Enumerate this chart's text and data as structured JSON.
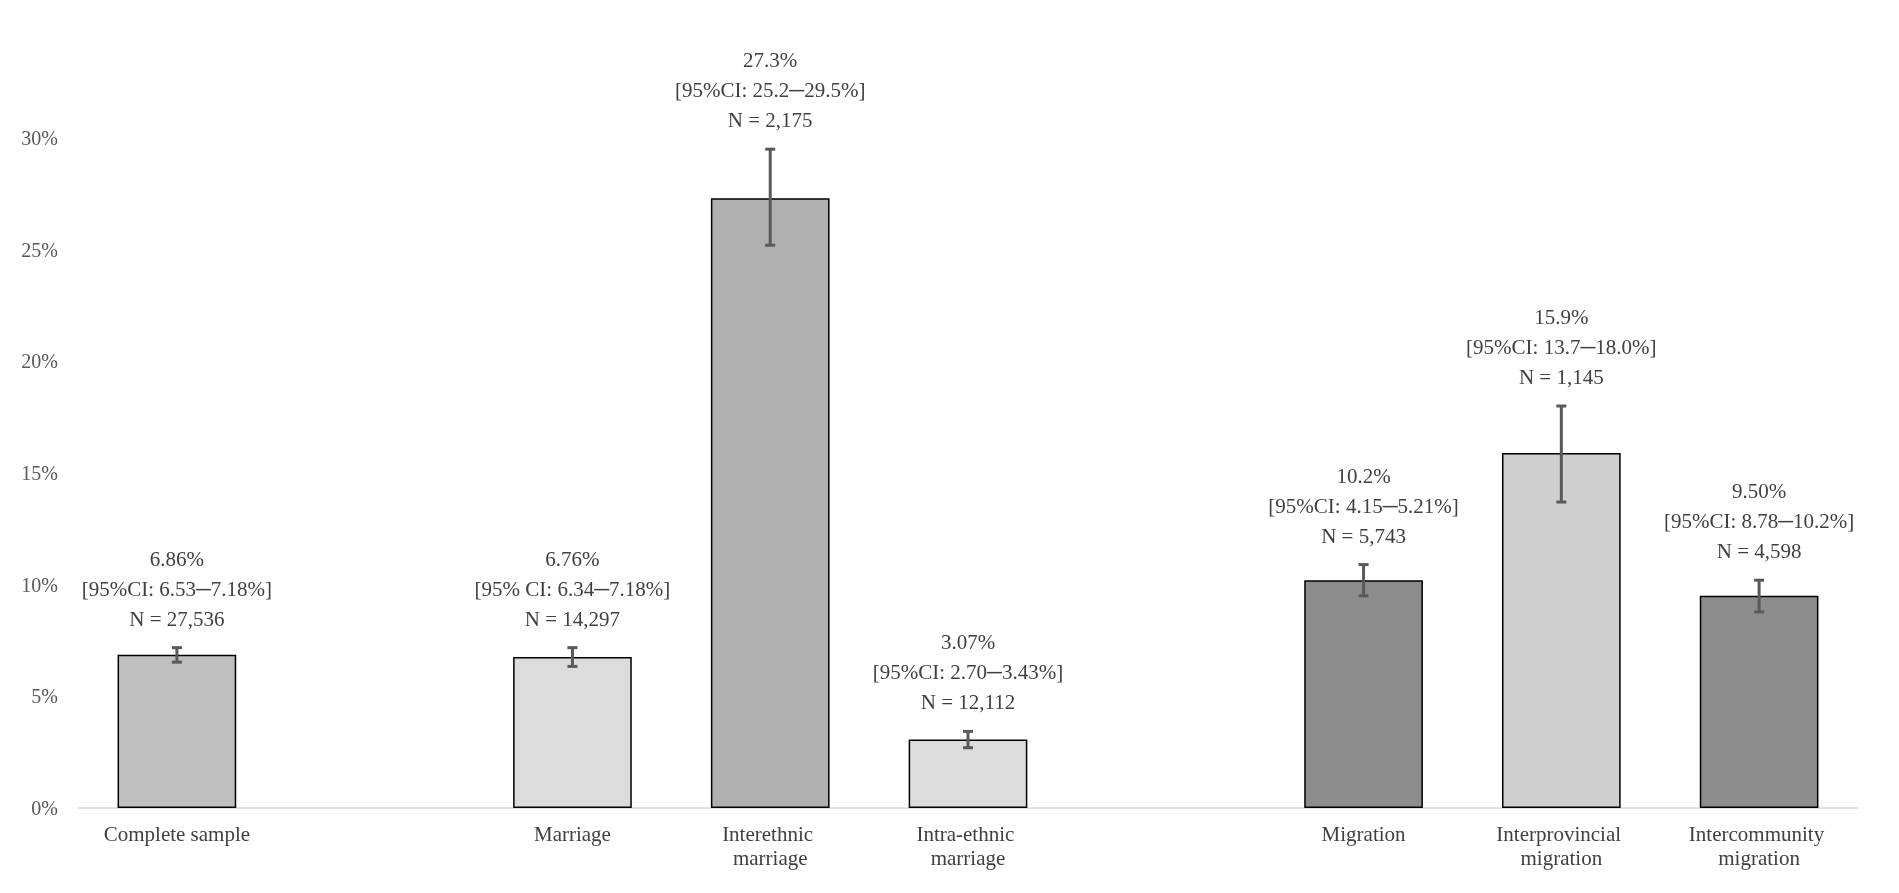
{
  "chart_data": {
    "type": "bar",
    "categories": [
      "Complete sample",
      null,
      "Marriage",
      "Interethnic marriage",
      "Intra-ethnic marriage",
      null,
      "Migration",
      "Interprovincial migration",
      "Intercommunity migration"
    ],
    "values": [
      6.86,
      null,
      6.76,
      27.3,
      3.07,
      null,
      10.2,
      15.9,
      9.5
    ],
    "colors": [
      "#bfbfbf",
      null,
      "#dcdcdc",
      "#b0b0b0",
      "#dcdcdc",
      null,
      "#8c8c8c",
      "#cfcfcf",
      "#8c8c8c"
    ],
    "errors": [
      [
        6.53,
        7.18
      ],
      null,
      [
        6.34,
        7.18
      ],
      [
        25.2,
        29.5
      ],
      [
        2.7,
        3.43
      ],
      null,
      [
        9.5,
        10.9
      ],
      [
        13.7,
        18.0
      ],
      [
        8.78,
        10.2
      ]
    ],
    "value_labels": [
      "6.86%\n[95%CI: 6.53─7.18%]\nN = 27,536",
      null,
      "6.76%\n[95% CI: 6.34─7.18%]\nN = 14,297",
      "27.3%\n[95%CI: 25.2─29.5%]\nN = 2,175",
      "3.07%\n[95%CI: 2.70─3.43%]\nN = 12,112",
      null,
      "10.2%\n[95%CI: 4.15─5.21%]\nN = 5,743",
      "15.9%\n[95%CI: 13.7─18.0%]\nN = 1,145",
      "9.50%\n[95%CI: 8.78─10.2%]\nN = 4,598"
    ],
    "ylim": [
      0,
      30
    ],
    "yticks": [
      {
        "value": 0,
        "label": "0%"
      },
      {
        "value": 5,
        "label": "5%"
      },
      {
        "value": 10,
        "label": "10%"
      },
      {
        "value": 15,
        "label": "15%"
      },
      {
        "value": 20,
        "label": "20%"
      },
      {
        "value": 25,
        "label": "25%"
      },
      {
        "value": 30,
        "label": "30%"
      }
    ],
    "grid": false
  }
}
